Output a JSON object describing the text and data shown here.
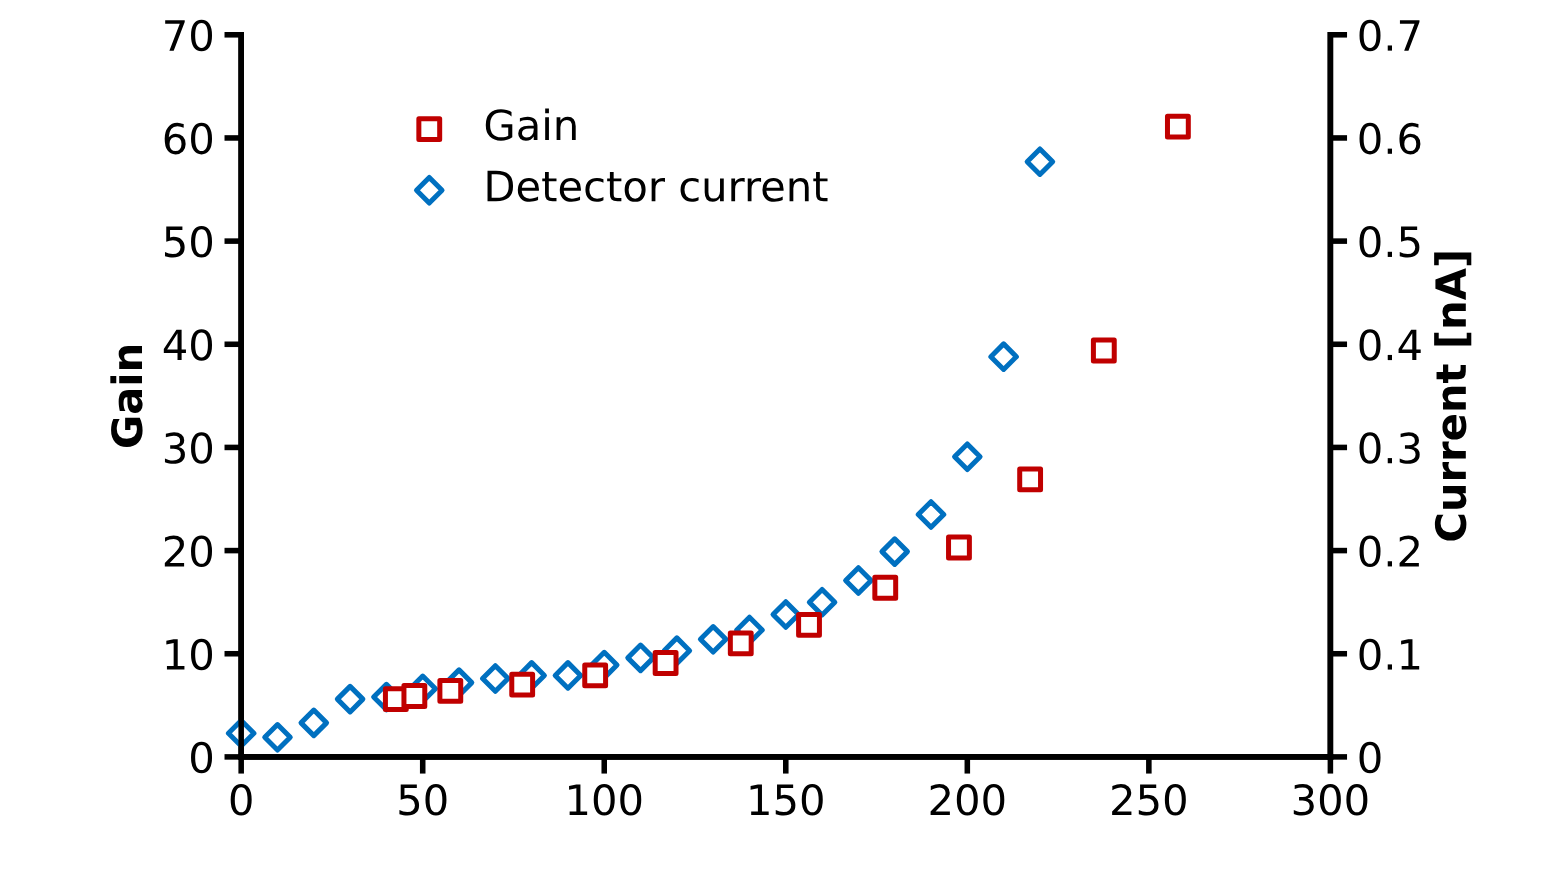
{
  "chart_data": {
    "type": "scatter",
    "xlabel": null,
    "ylabel": "Gain",
    "y2label": "Current [nA]",
    "xlim": [
      0,
      300
    ],
    "xticks": [
      0,
      50,
      100,
      150,
      200,
      250,
      300
    ],
    "ylim": [
      0,
      70
    ],
    "yticks": [
      0,
      10,
      20,
      30,
      40,
      50,
      60,
      70
    ],
    "y2lim": [
      0,
      0.7
    ],
    "y2ticks": [
      0,
      0.1,
      0.2,
      0.3,
      0.4,
      0.5,
      0.6,
      0.7
    ],
    "legend": "top left",
    "grid": false,
    "series": [
      {
        "name": "Gain",
        "color": "#c00000",
        "marker": "square",
        "x": [
          42.6,
          47.7,
          57.6,
          77.4,
          97.5,
          116.9,
          137.6,
          156.4,
          177.4,
          197.7,
          217.3,
          237.6,
          258
        ],
        "values": [
          5.6,
          5.9,
          6.4,
          7.0,
          7.9,
          9.1,
          11.0,
          12.8,
          16.4,
          20.3,
          26.9,
          39.4,
          61.1
        ]
      },
      {
        "name": "Detector current",
        "color": "#0070c0",
        "marker": "diamond",
        "axis": "y2",
        "x": [
          0,
          10,
          20,
          30,
          40,
          50,
          60,
          70,
          80,
          90,
          100,
          110,
          120,
          130,
          140,
          150,
          160,
          170,
          180,
          190,
          200,
          210,
          220
        ],
        "values": [
          0.023,
          0.019,
          0.033,
          0.056,
          0.058,
          0.066,
          0.072,
          0.076,
          0.079,
          0.079,
          0.089,
          0.096,
          0.103,
          0.114,
          0.123,
          0.138,
          0.15,
          0.171,
          0.199,
          0.235,
          0.291,
          0.388,
          0.577
        ]
      }
    ]
  }
}
